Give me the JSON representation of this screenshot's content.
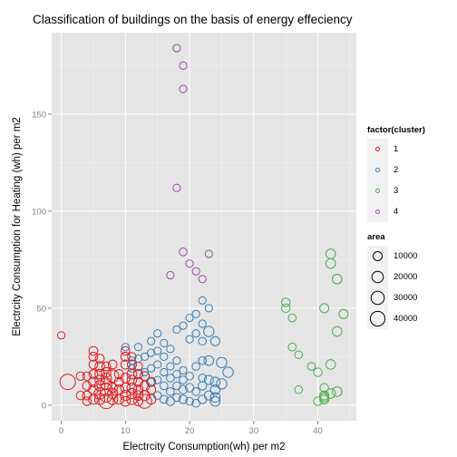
{
  "chart_data": {
    "type": "scatter",
    "title": "Classification of buildings on the basis of energy effeciency",
    "xlabel": "Electrcity Consumption(wh) per m2",
    "ylabel": "Electrcity Consumption for Heating (wh) per m2",
    "xlim": [
      -1.5,
      46
    ],
    "ylim": [
      -8,
      192
    ],
    "xticks": [
      0,
      10,
      20,
      30,
      40
    ],
    "yticks": [
      0,
      50,
      100,
      150
    ],
    "grid": true,
    "colors": {
      "background": "#e5e5e5",
      "grid_major": "#ffffff",
      "grid_minor": "#f2f2f2",
      "cluster_1": "#e41a1c",
      "cluster_2": "#377eb8",
      "cluster_3": "#4daf4a",
      "cluster_4": "#984ea3"
    },
    "legend_color": {
      "title": "factor(cluster)",
      "entries": [
        "1",
        "2",
        "3",
        "4"
      ]
    },
    "legend_size": {
      "title": "area",
      "entries": [
        "10000",
        "20000",
        "30000",
        "40000"
      ]
    },
    "series": [
      {
        "name": "1",
        "points": [
          [
            0,
            36,
            5000
          ],
          [
            1,
            12,
            45000
          ],
          [
            3,
            5,
            8000
          ],
          [
            3,
            15,
            8000
          ],
          [
            4,
            2,
            8000
          ],
          [
            4,
            5,
            9000
          ],
          [
            4,
            10,
            9000
          ],
          [
            4,
            15,
            8000
          ],
          [
            5,
            3,
            12000
          ],
          [
            5,
            8,
            12000
          ],
          [
            5,
            12,
            12000
          ],
          [
            5,
            16,
            9000
          ],
          [
            5,
            21,
            9000
          ],
          [
            5,
            25,
            9000
          ],
          [
            5,
            28,
            9000
          ],
          [
            6,
            3,
            15000
          ],
          [
            6,
            6,
            20000
          ],
          [
            6,
            10,
            15000
          ],
          [
            6,
            13,
            12000
          ],
          [
            6,
            16,
            12000
          ],
          [
            6,
            20,
            12000
          ],
          [
            6,
            24,
            9000
          ],
          [
            7,
            2,
            40000
          ],
          [
            7,
            5,
            30000
          ],
          [
            7,
            8,
            25000
          ],
          [
            7,
            11,
            20000
          ],
          [
            7,
            14,
            15000
          ],
          [
            7,
            17,
            12000
          ],
          [
            7,
            20,
            9000
          ],
          [
            8,
            3,
            15000
          ],
          [
            8,
            6,
            15000
          ],
          [
            8,
            9,
            12000
          ],
          [
            8,
            15,
            25000
          ],
          [
            8,
            21,
            9000
          ],
          [
            9,
            3,
            12000
          ],
          [
            9,
            8,
            12000
          ],
          [
            9,
            12,
            10000
          ],
          [
            9,
            16,
            10000
          ],
          [
            10,
            2,
            12000
          ],
          [
            10,
            5,
            15000
          ],
          [
            10,
            9,
            12000
          ],
          [
            10,
            14,
            12000
          ],
          [
            10,
            21,
            10000
          ],
          [
            10,
            25,
            10000
          ],
          [
            10,
            28,
            8000
          ],
          [
            11,
            3,
            15000
          ],
          [
            11,
            6,
            15000
          ],
          [
            11,
            9,
            12000
          ],
          [
            11,
            13,
            12000
          ],
          [
            11,
            16,
            12000
          ],
          [
            11,
            21,
            10000
          ],
          [
            11,
            25,
            8000
          ],
          [
            12,
            2,
            10000
          ],
          [
            12,
            5,
            12000
          ],
          [
            12,
            8,
            12000
          ],
          [
            12,
            12,
            10000
          ],
          [
            12,
            16,
            10000
          ],
          [
            12,
            20,
            8000
          ],
          [
            13,
            2,
            35000
          ],
          [
            13,
            5,
            15000
          ],
          [
            13,
            10,
            12000
          ],
          [
            13,
            15,
            10000
          ],
          [
            14,
            3,
            12000
          ],
          [
            14,
            8,
            10000
          ],
          [
            14,
            12,
            10000
          ]
        ]
      },
      {
        "name": "2",
        "points": [
          [
            10,
            30,
            5000
          ],
          [
            11,
            23,
            5000
          ],
          [
            11,
            19,
            5000
          ],
          [
            12,
            24,
            5000
          ],
          [
            12,
            30,
            5000
          ],
          [
            13,
            17,
            5000
          ],
          [
            13,
            25,
            5000
          ],
          [
            14,
            12,
            5000
          ],
          [
            14,
            19,
            5000
          ],
          [
            14,
            27,
            5000
          ],
          [
            14,
            33,
            5000
          ],
          [
            15,
            5,
            6000
          ],
          [
            15,
            13,
            5000
          ],
          [
            15,
            21,
            5000
          ],
          [
            15,
            28,
            5000
          ],
          [
            15,
            37,
            5000
          ],
          [
            16,
            3,
            6000
          ],
          [
            16,
            10,
            6000
          ],
          [
            16,
            17,
            5000
          ],
          [
            16,
            25,
            5000
          ],
          [
            16,
            32,
            5000
          ],
          [
            17,
            2,
            8000
          ],
          [
            17,
            7,
            6000
          ],
          [
            17,
            14,
            6000
          ],
          [
            17,
            20,
            5000
          ],
          [
            17,
            29,
            5000
          ],
          [
            18,
            4,
            6000
          ],
          [
            18,
            10,
            6000
          ],
          [
            18,
            16,
            5000
          ],
          [
            18,
            23,
            5000
          ],
          [
            18,
            39,
            5000
          ],
          [
            19,
            3,
            8000
          ],
          [
            19,
            8,
            8000
          ],
          [
            19,
            13,
            6000
          ],
          [
            19,
            18,
            5000
          ],
          [
            19,
            41,
            5000
          ],
          [
            20,
            2,
            6000
          ],
          [
            20,
            9,
            8000
          ],
          [
            20,
            15,
            6000
          ],
          [
            20,
            34,
            5000
          ],
          [
            20,
            45,
            5000
          ],
          [
            21,
            1,
            6000
          ],
          [
            21,
            7,
            6000
          ],
          [
            21,
            20,
            6000
          ],
          [
            21,
            37,
            5000
          ],
          [
            21,
            47,
            5000
          ],
          [
            22,
            3,
            8000
          ],
          [
            22,
            10,
            8000
          ],
          [
            22,
            14,
            6000
          ],
          [
            22,
            23,
            6000
          ],
          [
            22,
            33,
            6000
          ],
          [
            22,
            42,
            5000
          ],
          [
            22,
            54,
            5000
          ],
          [
            23,
            5,
            10000
          ],
          [
            23,
            13,
            10000
          ],
          [
            23,
            23,
            12000
          ],
          [
            23,
            38,
            15000
          ],
          [
            23,
            50,
            5000
          ],
          [
            24,
            2,
            12000
          ],
          [
            24,
            4,
            12000
          ],
          [
            24,
            8,
            12000
          ],
          [
            24,
            12,
            12000
          ],
          [
            24,
            33,
            10000
          ],
          [
            25,
            11,
            15000
          ],
          [
            25,
            22,
            15000
          ],
          [
            26,
            17,
            15000
          ]
        ]
      },
      {
        "name": "3",
        "points": [
          [
            35,
            53,
            8000
          ],
          [
            35,
            50,
            8000
          ],
          [
            36,
            45,
            6000
          ],
          [
            36,
            30,
            6000
          ],
          [
            37,
            26,
            6000
          ],
          [
            37,
            8,
            6000
          ],
          [
            39,
            20,
            6000
          ],
          [
            40,
            2,
            8000
          ],
          [
            40,
            17,
            8000
          ],
          [
            41,
            50,
            10000
          ],
          [
            41,
            9,
            8000
          ],
          [
            41,
            5,
            10000
          ],
          [
            41,
            3,
            10000
          ],
          [
            41,
            4,
            10000
          ],
          [
            42,
            78,
            12000
          ],
          [
            42,
            73,
            12000
          ],
          [
            42,
            6,
            12000
          ],
          [
            42,
            21,
            12000
          ],
          [
            43,
            65,
            12000
          ],
          [
            43,
            38,
            12000
          ],
          [
            43,
            7,
            12000
          ],
          [
            44,
            47,
            10000
          ]
        ]
      },
      {
        "name": "4",
        "points": [
          [
            17,
            67,
            5000
          ],
          [
            18,
            112,
            5000
          ],
          [
            18,
            184,
            5000
          ],
          [
            19,
            175,
            5000
          ],
          [
            19,
            163,
            5000
          ],
          [
            19,
            79,
            6000
          ],
          [
            20,
            73,
            5000
          ],
          [
            21,
            69,
            5000
          ],
          [
            22,
            65,
            5000
          ],
          [
            23,
            78,
            5000
          ]
        ]
      }
    ]
  }
}
